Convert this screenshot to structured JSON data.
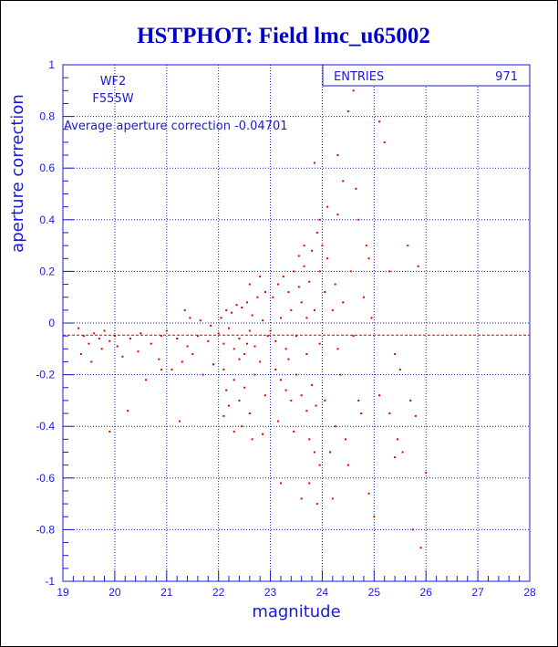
{
  "chart_data": {
    "type": "scatter",
    "title": "HSTPHOT: Field lmc_u65002",
    "xlabel": "magnitude",
    "ylabel": "aperture correction",
    "xlim": [
      19,
      28
    ],
    "ylim": [
      -1,
      1
    ],
    "x_ticks": [
      19,
      20,
      21,
      22,
      23,
      24,
      25,
      26,
      27,
      28
    ],
    "y_ticks": [
      -1,
      -0.8,
      -0.6,
      -0.4,
      -0.2,
      0,
      0.2,
      0.4,
      0.6,
      0.8,
      1
    ],
    "grid": "dotted",
    "stats_box": {
      "label": "ENTRIES",
      "value": "971"
    },
    "camera": "WF2",
    "filter": "F555W",
    "annotation": "Average aperture correction -0.04701",
    "average_line_y": -0.04701,
    "series": [
      {
        "points": [
          [
            19.3,
            -0.02
          ],
          [
            19.4,
            -0.05
          ],
          [
            19.5,
            -0.08
          ],
          [
            19.6,
            -0.04
          ],
          [
            19.7,
            -0.06
          ],
          [
            19.8,
            -0.03
          ],
          [
            19.9,
            -0.07
          ],
          [
            20.0,
            -0.05
          ],
          [
            19.35,
            -0.12
          ],
          [
            19.55,
            -0.15
          ],
          [
            19.75,
            -0.1
          ],
          [
            20.05,
            -0.09
          ],
          [
            20.3,
            -0.06
          ],
          [
            20.5,
            -0.04
          ],
          [
            20.7,
            -0.08
          ],
          [
            20.9,
            -0.05
          ],
          [
            20.15,
            -0.13
          ],
          [
            20.45,
            -0.11
          ],
          [
            20.85,
            -0.14
          ],
          [
            21.0,
            -0.03
          ],
          [
            21.2,
            -0.06
          ],
          [
            21.4,
            -0.09
          ],
          [
            21.6,
            -0.05
          ],
          [
            21.8,
            -0.07
          ],
          [
            21.1,
            -0.18
          ],
          [
            21.3,
            -0.15
          ],
          [
            21.5,
            -0.12
          ],
          [
            21.7,
            -0.2
          ],
          [
            21.9,
            -0.16
          ],
          [
            20.6,
            -0.22
          ],
          [
            20.9,
            -0.18
          ],
          [
            21.25,
            -0.38
          ],
          [
            19.9,
            -0.42
          ],
          [
            20.25,
            -0.34
          ],
          [
            21.45,
            0.02
          ],
          [
            21.35,
            0.05
          ],
          [
            21.65,
            0.01
          ],
          [
            21.85,
            -0.01
          ],
          [
            22.0,
            -0.04
          ],
          [
            22.1,
            -0.08
          ],
          [
            22.2,
            -0.02
          ],
          [
            22.3,
            -0.1
          ],
          [
            22.4,
            -0.06
          ],
          [
            22.5,
            -0.12
          ],
          [
            22.6,
            -0.03
          ],
          [
            22.7,
            -0.09
          ],
          [
            22.05,
            0.02
          ],
          [
            22.25,
            0.04
          ],
          [
            22.45,
            0.06
          ],
          [
            22.65,
            0.03
          ],
          [
            22.85,
            0.01
          ],
          [
            22.15,
            0.05
          ],
          [
            22.35,
            0.07
          ],
          [
            22.55,
            0.08
          ],
          [
            22.1,
            -0.18
          ],
          [
            22.3,
            -0.22
          ],
          [
            22.5,
            -0.25
          ],
          [
            22.7,
            -0.2
          ],
          [
            22.9,
            -0.28
          ],
          [
            22.2,
            -0.32
          ],
          [
            22.4,
            -0.3
          ],
          [
            22.6,
            -0.35
          ],
          [
            22.8,
            -0.15
          ],
          [
            22.95,
            -0.05
          ],
          [
            22.75,
            0.1
          ],
          [
            22.9,
            0.12
          ],
          [
            22.6,
            0.15
          ],
          [
            22.8,
            0.18
          ],
          [
            22.45,
            -0.4
          ],
          [
            22.65,
            -0.45
          ],
          [
            22.85,
            -0.43
          ],
          [
            22.3,
            -0.42
          ],
          [
            22.1,
            -0.36
          ],
          [
            22.4,
            -0.14
          ],
          [
            22.15,
            -0.26
          ],
          [
            22.55,
            -0.08
          ],
          [
            23.0,
            -0.03
          ],
          [
            23.1,
            -0.07
          ],
          [
            23.2,
            0.02
          ],
          [
            23.3,
            -0.1
          ],
          [
            23.4,
            0.05
          ],
          [
            23.5,
            -0.05
          ],
          [
            23.6,
            0.08
          ],
          [
            23.7,
            -0.12
          ],
          [
            23.05,
            0.1
          ],
          [
            23.15,
            0.15
          ],
          [
            23.25,
            0.18
          ],
          [
            23.35,
            0.12
          ],
          [
            23.45,
            0.2
          ],
          [
            23.55,
            0.14
          ],
          [
            23.65,
            0.22
          ],
          [
            23.75,
            0.16
          ],
          [
            23.1,
            -0.18
          ],
          [
            23.2,
            -0.22
          ],
          [
            23.3,
            -0.26
          ],
          [
            23.4,
            -0.3
          ],
          [
            23.5,
            -0.2
          ],
          [
            23.6,
            -0.28
          ],
          [
            23.7,
            -0.34
          ],
          [
            23.8,
            -0.24
          ],
          [
            23.15,
            -0.38
          ],
          [
            23.45,
            -0.42
          ],
          [
            23.75,
            -0.45
          ],
          [
            23.85,
            -0.5
          ],
          [
            23.95,
            -0.55
          ],
          [
            23.55,
            0.26
          ],
          [
            23.65,
            0.3
          ],
          [
            23.8,
            0.28
          ],
          [
            23.9,
            0.35
          ],
          [
            23.85,
            0.62
          ],
          [
            23.95,
            0.4
          ],
          [
            23.75,
            -0.62
          ],
          [
            23.9,
            -0.7
          ],
          [
            23.6,
            -0.68
          ],
          [
            23.2,
            -0.62
          ],
          [
            23.85,
            0.05
          ],
          [
            23.95,
            -0.08
          ],
          [
            23.7,
            0.02
          ],
          [
            23.35,
            -0.14
          ],
          [
            23.95,
            0.2
          ],
          [
            23.88,
            -0.32
          ],
          [
            24.0,
            0.3
          ],
          [
            24.1,
            0.25
          ],
          [
            24.2,
            0.05
          ],
          [
            24.3,
            -0.1
          ],
          [
            24.05,
            -0.3
          ],
          [
            24.15,
            -0.5
          ],
          [
            24.25,
            0.15
          ],
          [
            24.35,
            -0.2
          ],
          [
            24.1,
            0.45
          ],
          [
            24.3,
            0.65
          ],
          [
            24.5,
            0.82
          ],
          [
            24.6,
            0.9
          ],
          [
            24.4,
            0.55
          ],
          [
            24.2,
            -0.68
          ],
          [
            24.45,
            -0.45
          ],
          [
            24.55,
            0.2
          ],
          [
            24.7,
            -0.3
          ],
          [
            24.8,
            0.1
          ],
          [
            24.9,
            -0.66
          ],
          [
            25.0,
            -0.75
          ],
          [
            24.65,
            0.52
          ],
          [
            24.75,
            -0.35
          ],
          [
            24.85,
            0.3
          ],
          [
            24.95,
            0.02
          ],
          [
            24.05,
            0.12
          ],
          [
            24.25,
            -0.4
          ],
          [
            24.6,
            -0.05
          ],
          [
            24.4,
            0.08
          ],
          [
            24.3,
            0.42
          ],
          [
            24.5,
            -0.55
          ],
          [
            24.7,
            0.4
          ],
          [
            24.9,
            0.25
          ],
          [
            25.1,
            0.78
          ],
          [
            25.2,
            0.7
          ],
          [
            25.3,
            0.2
          ],
          [
            25.4,
            -0.12
          ],
          [
            25.5,
            -0.18
          ],
          [
            25.1,
            -0.28
          ],
          [
            25.3,
            -0.35
          ],
          [
            25.45,
            -0.45
          ],
          [
            25.7,
            -0.3
          ],
          [
            25.8,
            -0.36
          ],
          [
            25.9,
            -0.87
          ],
          [
            25.65,
            0.3
          ],
          [
            25.85,
            0.22
          ],
          [
            25.55,
            -0.5
          ],
          [
            25.75,
            -0.8
          ],
          [
            26.0,
            -0.58
          ],
          [
            25.4,
            -0.52
          ]
        ]
      }
    ],
    "colors": {
      "points": "#dd0000",
      "axes": "#1a1ad6",
      "title": "#0000cc",
      "ref_line": "#dd0000"
    }
  }
}
